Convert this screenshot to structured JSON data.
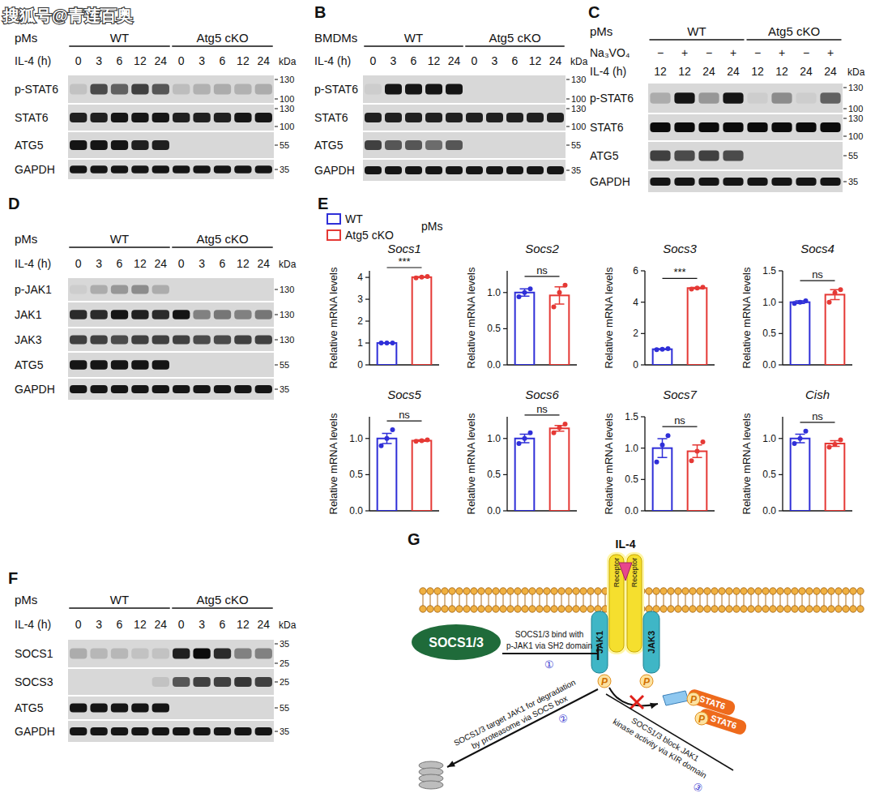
{
  "watermark": "搜狐号@青莲百奥",
  "blots": [
    {
      "cells": "pMs",
      "groups": [
        "WT",
        "Atg5 cKO"
      ],
      "conditions": [
        {
          "name": "IL-4 (h)",
          "lanes": [
            0,
            3,
            6,
            12,
            24,
            0,
            3,
            6,
            12,
            24
          ]
        }
      ],
      "unit": "kDa",
      "rows": [
        {
          "name": "p-STAT6",
          "markers": [
            130,
            100
          ],
          "bands": [
            0.1,
            0.65,
            0.55,
            0.7,
            0.6,
            0.12,
            0.18,
            0.2,
            0.18,
            0.2
          ]
        },
        {
          "name": "STAT6",
          "markers": [
            130,
            100
          ],
          "bands": [
            0.85,
            0.85,
            0.9,
            0.9,
            0.9,
            0.85,
            0.85,
            0.85,
            0.9,
            0.9
          ]
        },
        {
          "name": "ATG5",
          "markers": [
            55
          ],
          "bands": [
            0.9,
            0.9,
            0.9,
            0.85,
            0.85,
            0,
            0,
            0,
            0,
            0
          ]
        },
        {
          "name": "GAPDH",
          "markers": [
            35
          ],
          "bands": [
            0.9,
            0.9,
            0.9,
            0.9,
            0.9,
            0.9,
            0.9,
            0.9,
            0.9,
            0.9
          ]
        }
      ]
    },
    {
      "label": "B",
      "cells": "BMDMs",
      "groups": [
        "WT",
        "Atg5 cKO"
      ],
      "conditions": [
        {
          "name": "IL-4 (h)",
          "lanes": [
            0,
            3,
            6,
            12,
            24,
            0,
            3,
            6,
            12,
            24
          ]
        }
      ],
      "unit": "kDa",
      "rows": [
        {
          "name": "p-STAT6",
          "markers": [
            130,
            100
          ],
          "bands": [
            0.05,
            0.9,
            0.9,
            0.9,
            0.9,
            0,
            0,
            0,
            0,
            0
          ]
        },
        {
          "name": "STAT6",
          "markers": [
            130,
            100
          ],
          "bands": [
            0.85,
            0.85,
            0.85,
            0.85,
            0.85,
            0.85,
            0.85,
            0.85,
            0.85,
            0.85
          ]
        },
        {
          "name": "ATG5",
          "markers": [
            55
          ],
          "bands": [
            0.7,
            0.6,
            0.6,
            0.5,
            0.6,
            0,
            0,
            0,
            0,
            0
          ]
        },
        {
          "name": "GAPDH",
          "markers": [
            35
          ],
          "bands": [
            0.9,
            0.9,
            0.9,
            0.9,
            0.9,
            0.9,
            0.9,
            0.9,
            0.9,
            0.9
          ]
        }
      ]
    },
    {
      "label": "C",
      "cells": "pMs",
      "groups": [
        "WT",
        "Atg5 cKO"
      ],
      "conditions": [
        {
          "name": "Na₃VO₄",
          "lanes": [
            "−",
            "+",
            "−",
            "+",
            "−",
            "+",
            "−",
            "+"
          ]
        },
        {
          "name": "IL-4 (h)",
          "lanes": [
            12,
            12,
            24,
            24,
            12,
            12,
            24,
            24
          ]
        }
      ],
      "unit": "kDa",
      "rows": [
        {
          "name": "p-STAT6",
          "markers": [
            130,
            100
          ],
          "bands": [
            0.2,
            0.9,
            0.3,
            0.9,
            0.05,
            0.35,
            0.05,
            0.55
          ]
        },
        {
          "name": "STAT6",
          "markers": [
            130,
            100
          ],
          "bands": [
            0.95,
            0.95,
            0.95,
            0.95,
            0.95,
            0.95,
            0.95,
            0.95
          ]
        },
        {
          "name": "ATG5",
          "markers": [
            55
          ],
          "bands": [
            0.7,
            0.65,
            0.7,
            0.65,
            0,
            0,
            0,
            0
          ]
        },
        {
          "name": "GAPDH",
          "markers": [
            35
          ],
          "bands": [
            0.9,
            0.9,
            0.9,
            0.9,
            0.9,
            0.9,
            0.9,
            0.9
          ]
        }
      ]
    },
    {
      "label": "D",
      "cells": "pMs",
      "groups": [
        "WT",
        "Atg5 cKO"
      ],
      "conditions": [
        {
          "name": "IL-4 (h)",
          "lanes": [
            0,
            3,
            6,
            12,
            24,
            0,
            3,
            6,
            12,
            24
          ]
        }
      ],
      "unit": "kDa",
      "rows": [
        {
          "name": "p-JAK1",
          "markers": [
            130
          ],
          "bands": [
            0.05,
            0.2,
            0.3,
            0.35,
            0.2,
            0,
            0,
            0,
            0,
            0
          ]
        },
        {
          "name": "JAK1",
          "markers": [
            130
          ],
          "bands": [
            0.8,
            0.8,
            0.9,
            0.85,
            0.8,
            0.9,
            0.4,
            0.45,
            0.4,
            0.45
          ]
        },
        {
          "name": "JAK3",
          "markers": [
            130
          ],
          "bands": [
            0.7,
            0.7,
            0.65,
            0.7,
            0.7,
            0.7,
            0.65,
            0.65,
            0.7,
            0.7
          ]
        },
        {
          "name": "ATG5",
          "markers": [
            55
          ],
          "bands": [
            0.9,
            0.9,
            0.9,
            0.9,
            0.9,
            0,
            0,
            0,
            0,
            0
          ]
        },
        {
          "name": "GAPDH",
          "markers": [
            35
          ],
          "bands": [
            0.9,
            0.9,
            0.9,
            0.9,
            0.9,
            0.9,
            0.9,
            0.9,
            0.9,
            0.9
          ]
        }
      ]
    },
    {
      "label": "F",
      "cells": "pMs",
      "groups": [
        "WT",
        "Atg5 cKO"
      ],
      "conditions": [
        {
          "name": "IL-4 (h)",
          "lanes": [
            0,
            3,
            6,
            12,
            24,
            0,
            3,
            6,
            12,
            24
          ]
        }
      ],
      "unit": "kDa",
      "rows": [
        {
          "name": "SOCS1",
          "markers": [
            35,
            25
          ],
          "bands": [
            0.2,
            0.15,
            0.15,
            0.1,
            0.1,
            0.85,
            0.95,
            0.8,
            0.4,
            0.4
          ]
        },
        {
          "name": "SOCS3",
          "markers": [
            25
          ],
          "bands": [
            0,
            0,
            0,
            0,
            0.1,
            0.6,
            0.7,
            0.7,
            0.75,
            0.7
          ]
        },
        {
          "name": "ATG5",
          "markers": [
            55
          ],
          "bands": [
            0.9,
            0.9,
            0.9,
            0.9,
            0.9,
            0,
            0,
            0,
            0,
            0
          ]
        },
        {
          "name": "GAPDH",
          "markers": [
            35
          ],
          "bands": [
            0.9,
            0.9,
            0.9,
            0.9,
            0.9,
            0.9,
            0.9,
            0.9,
            0.9,
            0.9
          ]
        }
      ]
    }
  ],
  "panel_e": {
    "label": "E",
    "cells": "pMs",
    "legend_entries": [
      {
        "name": "WT",
        "color": "#2f2fd8"
      },
      {
        "name": "Atg5 cKO",
        "color": "#e53935"
      }
    ]
  },
  "chart_data": [
    {
      "type": "bar",
      "title": "Socs1",
      "y_label": "Relative mRNA levels",
      "categories": [
        null,
        null
      ],
      "values": [
        1.0,
        4.01
      ],
      "errors": [
        0.01,
        0.02
      ],
      "points": [
        [
          1.0,
          1.0,
          1.0
        ],
        [
          3.98,
          4.01,
          4.04
        ]
      ],
      "colors": [
        "#2f2fd8",
        "#e53935"
      ],
      "annotation": "***",
      "ylim": [
        0,
        4.3
      ],
      "yticks": [
        0,
        1,
        2,
        3,
        4
      ]
    },
    {
      "type": "bar",
      "title": "Socs2",
      "y_label": "Relative mRNA levels",
      "categories": [
        null,
        null
      ],
      "values": [
        1.0,
        0.96
      ],
      "errors": [
        0.05,
        0.12
      ],
      "points": [
        [
          0.94,
          1.0,
          1.05
        ],
        [
          0.8,
          1.0,
          1.1
        ]
      ],
      "colors": [
        "#2f2fd8",
        "#e53935"
      ],
      "annotation": "ns",
      "ylim": [
        0,
        1.3
      ],
      "yticks": [
        {
          "value": 0,
          "label": "0.0"
        },
        {
          "value": 0.5,
          "label": "0.5"
        },
        {
          "value": 1,
          "label": "1.0"
        }
      ]
    },
    {
      "type": "bar",
      "title": "Socs3",
      "y_label": "Relative mRNA levels",
      "categories": [
        null,
        null
      ],
      "values": [
        1.0,
        4.9
      ],
      "errors": [
        0.02,
        0.04
      ],
      "points": [
        [
          0.97,
          1.0,
          1.03
        ],
        [
          4.84,
          4.9,
          4.95
        ]
      ],
      "colors": [
        "#2f2fd8",
        "#e53935"
      ],
      "annotation": "***",
      "ylim": [
        0,
        6
      ],
      "yticks": [
        0,
        2,
        4,
        6
      ]
    },
    {
      "type": "bar",
      "title": "Socs4",
      "y_label": "Relative mRNA levels",
      "categories": [
        null,
        null
      ],
      "values": [
        1.0,
        1.12
      ],
      "errors": [
        0.02,
        0.08
      ],
      "points": [
        [
          0.98,
          1.0,
          1.02
        ],
        [
          1.0,
          1.15,
          1.2
        ]
      ],
      "colors": [
        "#2f2fd8",
        "#e53935"
      ],
      "annotation": "ns",
      "ylim": [
        0,
        1.5
      ],
      "yticks": [
        {
          "value": 0,
          "label": "0.0"
        },
        {
          "value": 0.5,
          "label": "0.5"
        },
        {
          "value": 1,
          "label": "1.0"
        },
        {
          "value": 1.5,
          "label": "1.5"
        }
      ]
    },
    {
      "type": "bar",
      "title": "Socs5",
      "y_label": "Relative mRNA levels",
      "categories": [
        null,
        null
      ],
      "values": [
        1.0,
        0.97
      ],
      "errors": [
        0.07,
        0.01
      ],
      "points": [
        [
          0.9,
          1.0,
          1.12
        ],
        [
          0.96,
          0.97,
          0.98
        ]
      ],
      "colors": [
        "#2f2fd8",
        "#e53935"
      ],
      "annotation": "ns",
      "ylim": [
        0,
        1.3
      ],
      "yticks": [
        {
          "value": 0,
          "label": "0.0"
        },
        {
          "value": 0.5,
          "label": "0.5"
        },
        {
          "value": 1,
          "label": "1.0"
        }
      ]
    },
    {
      "type": "bar",
      "title": "Socs6",
      "y_label": "Relative mRNA levels",
      "categories": [
        null,
        null
      ],
      "values": [
        1.0,
        1.14
      ],
      "errors": [
        0.06,
        0.04
      ],
      "points": [
        [
          0.93,
          1.0,
          1.08
        ],
        [
          1.08,
          1.15,
          1.2
        ]
      ],
      "colors": [
        "#2f2fd8",
        "#e53935"
      ],
      "annotation": "ns",
      "ylim": [
        0,
        1.3
      ],
      "yticks": [
        {
          "value": 0,
          "label": "0.0"
        },
        {
          "value": 0.5,
          "label": "0.5"
        },
        {
          "value": 1,
          "label": "1.0"
        }
      ]
    },
    {
      "type": "bar",
      "title": "Socs7",
      "y_label": "Relative mRNA levels",
      "categories": [
        null,
        null
      ],
      "values": [
        1.0,
        0.95
      ],
      "errors": [
        0.15,
        0.1
      ],
      "points": [
        [
          0.78,
          1.05,
          1.2
        ],
        [
          0.8,
          0.95,
          1.1
        ]
      ],
      "colors": [
        "#2f2fd8",
        "#e53935"
      ],
      "annotation": "ns",
      "ylim": [
        0,
        1.5
      ],
      "yticks": [
        {
          "value": 0,
          "label": "0.0"
        },
        {
          "value": 0.5,
          "label": "0.5"
        },
        {
          "value": 1,
          "label": "1.0"
        },
        {
          "value": 1.5,
          "label": "1.5"
        }
      ]
    },
    {
      "type": "bar",
      "title": "Cish",
      "y_label": "Relative mRNA levels",
      "categories": [
        null,
        null
      ],
      "values": [
        1.0,
        0.93
      ],
      "errors": [
        0.06,
        0.04
      ],
      "points": [
        [
          0.93,
          1.0,
          1.1
        ],
        [
          0.88,
          0.92,
          0.98
        ]
      ],
      "colors": [
        "#2f2fd8",
        "#e53935"
      ],
      "annotation": "ns",
      "ylim": [
        0,
        1.3
      ],
      "yticks": [
        {
          "value": 0,
          "label": "0.0"
        },
        {
          "value": 0.5,
          "label": "0.5"
        },
        {
          "value": 1,
          "label": "1.0"
        }
      ]
    }
  ],
  "diagram": {
    "label": "G",
    "ligand": "IL-4",
    "receptors": [
      "Receptor",
      "Receptor"
    ],
    "kinases": [
      "JAK1",
      "JAK3"
    ],
    "inhibitor": "SOCS1/3",
    "phospho": "P",
    "stat": [
      "STAT6",
      "STAT6"
    ],
    "steps": [
      {
        "number": "①",
        "text": [
          "SOCS1/3 bind with",
          "p-JAK1 via SH2 domain"
        ]
      },
      {
        "number": "②",
        "text": [
          "SOCS1/3 target JAK1 for degradation",
          "by proteasome via SOCS box"
        ]
      },
      {
        "number": "③",
        "text": [
          "SOCS1/3 block JAK1",
          "kinase activity via KIR domain"
        ]
      }
    ]
  }
}
